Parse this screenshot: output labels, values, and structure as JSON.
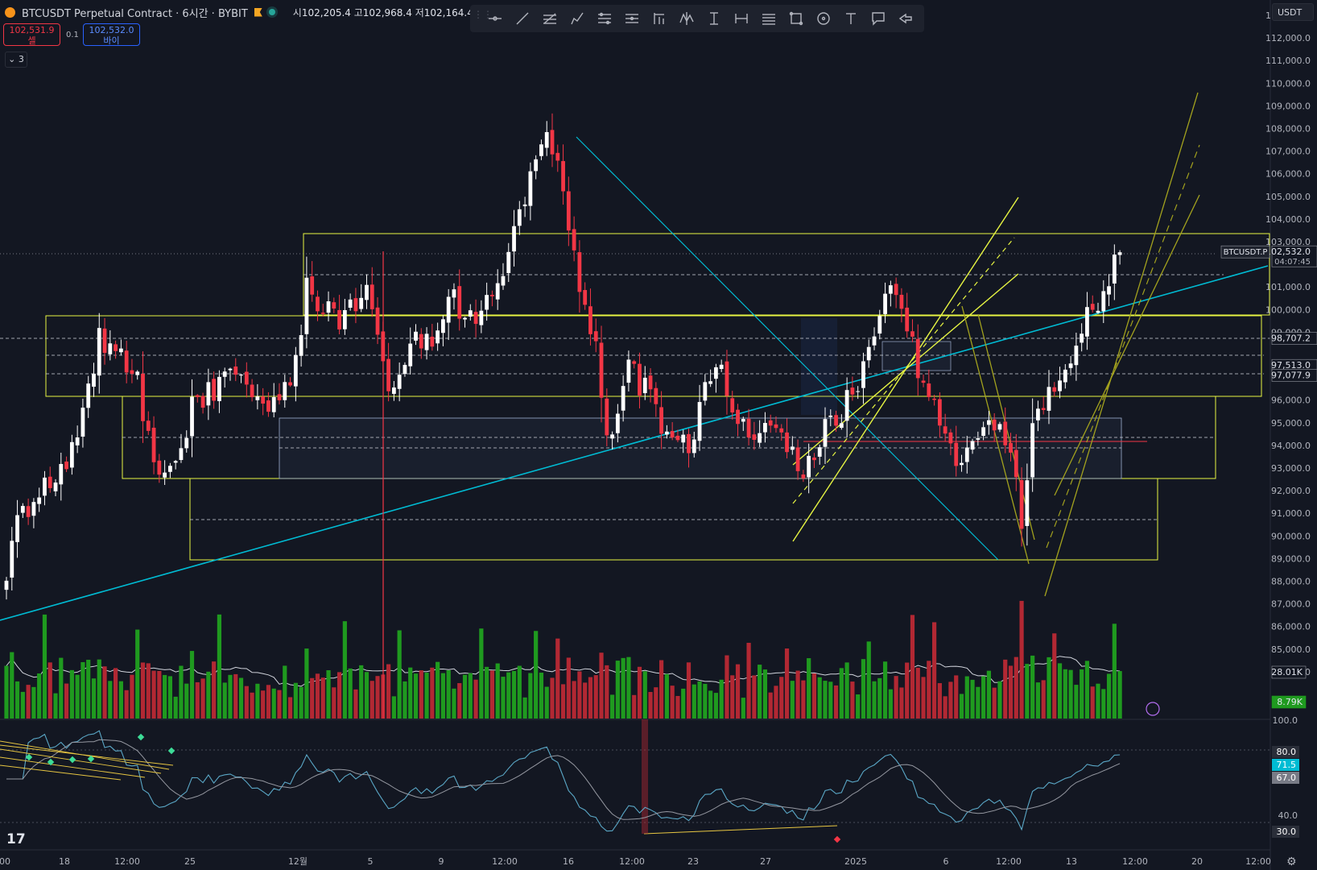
{
  "header": {
    "symbol_title": "BTCUSDT Perpetual Contract · 6시간 · BYBIT",
    "ohlc": [
      {
        "label": "시",
        "value": "102,205.4"
      },
      {
        "label": "고",
        "value": "102,968.4"
      },
      {
        "label": "저",
        "value": "102,164.4"
      }
    ]
  },
  "trade": {
    "sell_price": "102,531.9",
    "sell_label": "셀",
    "spread": "0.1",
    "buy_price": "102,532.0",
    "buy_label": "바이"
  },
  "indicators_toggle": "3",
  "currency_unit": "USDT",
  "toolbar_icons": [
    "horizontal-ray-icon",
    "trend-line-icon",
    "fib-retracement-icon",
    "pen-icon",
    "parallel-channel-icon",
    "pitchfork-icon",
    "long-position-icon",
    "pattern-icon",
    "price-range-icon",
    "date-range-icon",
    "fib-channel-icon",
    "rectangle-icon",
    "circle-icon",
    "text-icon",
    "callout-icon",
    "arrow-marker-icon"
  ],
  "tv_logo": "17",
  "price_axis": {
    "labels": [
      "113,000.0",
      "112,000.0",
      "111,000.0",
      "110,000.0",
      "109,000.0",
      "108,000.0",
      "107,000.0",
      "106,000.0",
      "105,000.0",
      "104,000.0",
      "103,000.0",
      "101,000.0",
      "100,000.0",
      "99,000.0",
      "96,000.0",
      "95,000.0",
      "94,000.0",
      "93,000.0",
      "92,000.0",
      "91,000.0",
      "90,000.0",
      "89,000.0",
      "88,000.0",
      "87,000.0",
      "86,000.0",
      "85,000.0",
      "84,000.0"
    ],
    "badges": [
      {
        "text": "102,532.0",
        "sub": "04:07:45",
        "color": "#131722"
      },
      {
        "text": "98,707.2",
        "color": "#131722"
      },
      {
        "text": "97,513.0",
        "color": "#131722"
      },
      {
        "text": "97,077.9",
        "color": "#131722"
      }
    ],
    "symbol_tag": "BTCUSDT.P"
  },
  "volume_axis": {
    "ma_label": "28.01K",
    "vol_label": "8.79K"
  },
  "rsi_axis": {
    "labels": [
      "100.0",
      "40.0"
    ],
    "badges": [
      {
        "text": "80.0",
        "color": "#2a2e39"
      },
      {
        "text": "71.5",
        "color": "#00bcd4"
      },
      {
        "text": "67.0",
        "color": "#787b86"
      },
      {
        "text": "30.0",
        "color": "#2a2e39"
      }
    ]
  },
  "time_axis": [
    "00",
    "18",
    "12:00",
    "25",
    "12월",
    "5",
    "9",
    "12:00",
    "16",
    "12:00",
    "23",
    "27",
    "2025",
    "6",
    "12:00",
    "13",
    "12:00",
    "20",
    "12:00"
  ],
  "chart_data": {
    "type": "candlestick",
    "timeframe": "6시간",
    "ylim": [
      83000,
      113500
    ],
    "colors": {
      "up": "#ffffff",
      "down": "#f23645",
      "vol_up": "#1f9a1f",
      "vol_down": "#b22833",
      "trend": "#00bcd4",
      "zone": "#e7f542",
      "rsi": "#5aa7c6",
      "rsi_ma": "#9598a1"
    },
    "close_anchors": [
      [
        0,
        87700
      ],
      [
        2,
        91000
      ],
      [
        5,
        91500
      ],
      [
        10,
        92600
      ],
      [
        14,
        95200
      ],
      [
        17,
        98700
      ],
      [
        20,
        98000
      ],
      [
        24,
        97000
      ],
      [
        27,
        93000
      ],
      [
        30,
        92800
      ],
      [
        34,
        95600
      ],
      [
        38,
        96500
      ],
      [
        42,
        97200
      ],
      [
        46,
        96000
      ],
      [
        52,
        96200
      ],
      [
        55,
        100800
      ],
      [
        58,
        100100
      ],
      [
        62,
        99600
      ],
      [
        66,
        101000
      ],
      [
        70,
        96100
      ],
      [
        74,
        98600
      ],
      [
        78,
        98300
      ],
      [
        82,
        100600
      ],
      [
        86,
        99000
      ],
      [
        90,
        101400
      ],
      [
        94,
        103800
      ],
      [
        97,
        107000
      ],
      [
        100,
        107300
      ],
      [
        104,
        102500
      ],
      [
        108,
        98000
      ],
      [
        110,
        94200
      ],
      [
        114,
        97700
      ],
      [
        118,
        96000
      ],
      [
        122,
        93900
      ],
      [
        126,
        94400
      ],
      [
        130,
        97900
      ],
      [
        134,
        95300
      ],
      [
        138,
        94400
      ],
      [
        140,
        94800
      ],
      [
        144,
        93300
      ],
      [
        148,
        92900
      ],
      [
        150,
        94900
      ],
      [
        153,
        95500
      ],
      [
        157,
        97200
      ],
      [
        160,
        99700
      ],
      [
        163,
        100900
      ],
      [
        166,
        98300
      ],
      [
        169,
        96100
      ],
      [
        172,
        94000
      ],
      [
        175,
        93300
      ],
      [
        178,
        94800
      ],
      [
        180,
        94700
      ],
      [
        182,
        94500
      ],
      [
        184,
        94200
      ],
      [
        186,
        90500
      ],
      [
        188,
        94600
      ],
      [
        191,
        96800
      ],
      [
        194,
        97300
      ],
      [
        198,
        100200
      ],
      [
        200,
        99400
      ],
      [
        203,
        102200
      ]
    ],
    "events": [
      [
        7,
        -1
      ],
      [
        24,
        -1
      ],
      [
        39,
        1
      ],
      [
        62,
        0.6
      ],
      [
        72,
        -0.8
      ],
      [
        87,
        0.5
      ],
      [
        97,
        1
      ],
      [
        101,
        -1
      ],
      [
        136,
        0.4
      ],
      [
        143,
        0.5
      ],
      [
        158,
        -0.6
      ],
      [
        166,
        1
      ],
      [
        170,
        0.6
      ],
      [
        186,
        -1
      ],
      [
        192,
        -0.7
      ],
      [
        203,
        0.9
      ]
    ],
    "volume_ma_range": [
      0,
      160000
    ],
    "rsi_range": [
      0,
      100
    ],
    "rsi_levels": [
      80,
      30
    ]
  }
}
